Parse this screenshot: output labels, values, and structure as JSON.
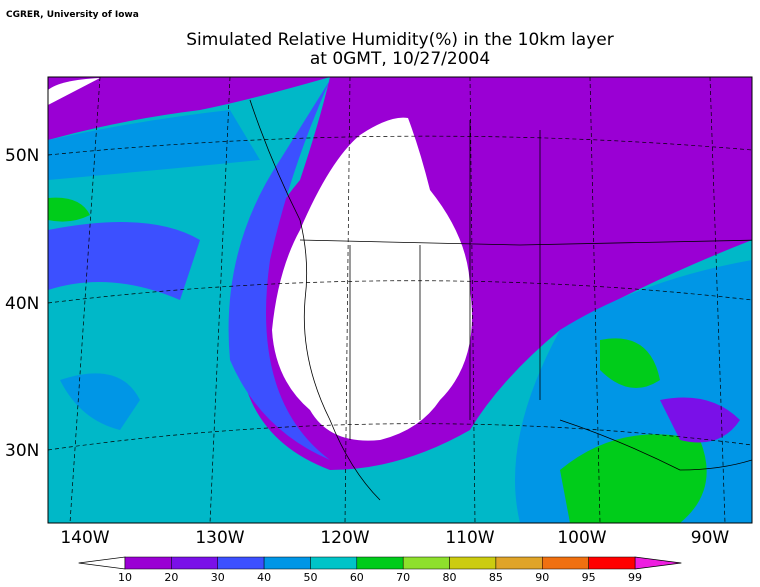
{
  "credit": "CGRER, University of Iowa",
  "title": [
    "Simulated Relative Humidity(%) in the 10km layer",
    "at 0GMT, 10/27/2004"
  ],
  "lat_labels": [
    "50N",
    "40N",
    "30N"
  ],
  "lon_labels": [
    "140W",
    "130W",
    "120W",
    "110W",
    "100W",
    "90W"
  ],
  "colorbar": {
    "labels": [
      10,
      20,
      30,
      40,
      50,
      60,
      70,
      80,
      85,
      90,
      95,
      99
    ],
    "colors": [
      "#9a00d4",
      "#7a10e8",
      "#3c50ff",
      "#0096e6",
      "#00c4c8",
      "#00cc1a",
      "#8ee02c",
      "#cccc10",
      "#e0a428",
      "#f07010",
      "#ff0000"
    ],
    "under_color": "#ffffff",
    "over_color": "#ee1ee0"
  }
}
